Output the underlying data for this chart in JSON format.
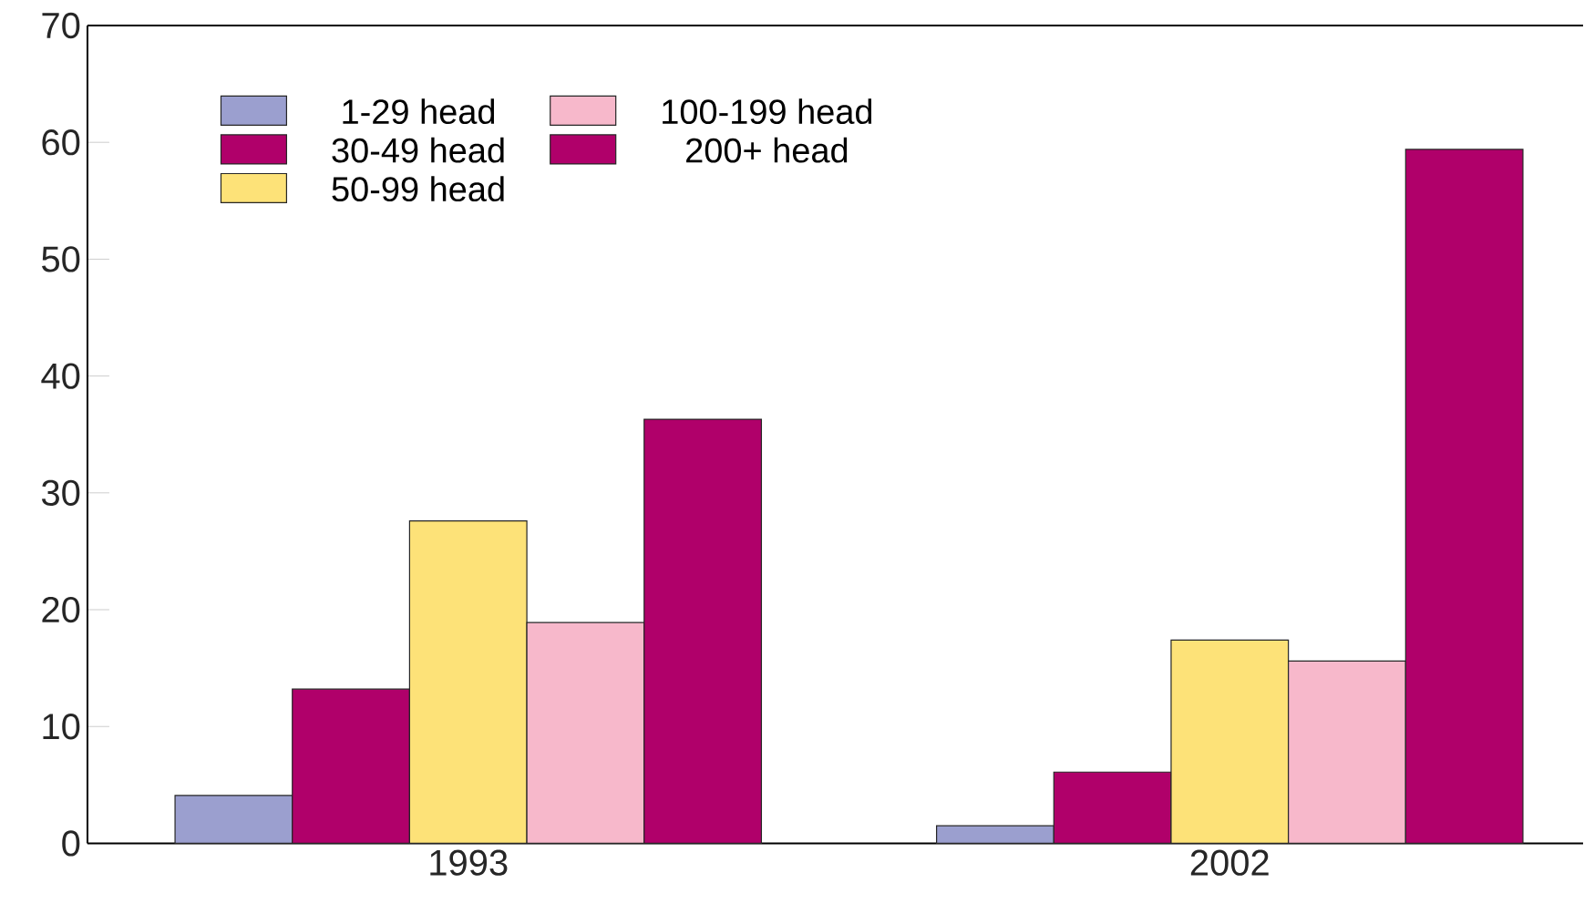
{
  "chart_data": {
    "type": "bar",
    "categories": [
      "1993",
      "2002"
    ],
    "series": [
      {
        "name": "1-29 head",
        "color": "#9b9fcf",
        "values": [
          4.1,
          1.5
        ]
      },
      {
        "name": "30-49 head",
        "color": "#b0006a",
        "values": [
          13.2,
          6.1
        ]
      },
      {
        "name": "50-99 head",
        "color": "#fde278",
        "values": [
          27.6,
          17.4
        ]
      },
      {
        "name": "100-199 head",
        "color": "#f7b8cb",
        "values": [
          18.9,
          15.6
        ]
      },
      {
        "name": "200+ head",
        "color": "#b0006a",
        "values": [
          36.3,
          59.4
        ]
      }
    ],
    "ylim": [
      0,
      70
    ],
    "yticks": [
      0,
      10,
      20,
      30,
      40,
      50,
      60,
      70
    ],
    "grid": false,
    "legend": "top left"
  }
}
